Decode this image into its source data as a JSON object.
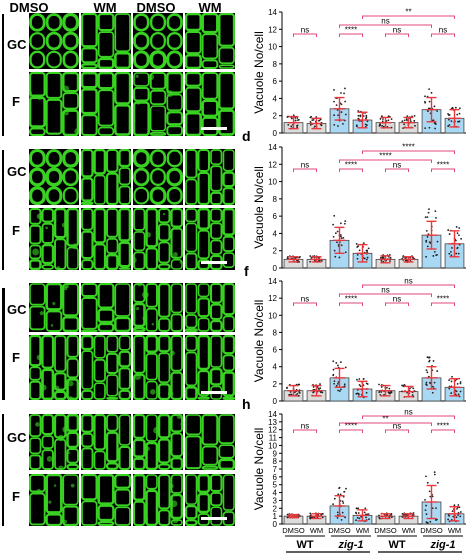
{
  "figure": {
    "column_headers": [
      "DMSO",
      "WM",
      "DMSO",
      "WM"
    ],
    "row_labels": [
      "GC",
      "F"
    ],
    "panel_letters": [
      "d",
      "f",
      "h"
    ],
    "xaxis_groups": [
      "WT",
      "zig-1",
      "WT",
      "zig-1"
    ],
    "colors": {
      "wt_bar": "#dcdcdc",
      "zig_bar": "#a9d8f3",
      "bar_edge": "#444444",
      "error": "#e8383d",
      "bracket": "#e04a7a",
      "micrograph_bg": "#000000",
      "micrograph_fg": "#39d122"
    }
  },
  "chart_data": [
    {
      "type": "bar",
      "ylabel": "Vacuole No/cell",
      "ylim": [
        0,
        14
      ],
      "yticks": [
        0,
        2,
        4,
        6,
        8,
        10,
        12,
        14
      ],
      "categories": [
        "DMSO",
        "WM",
        "DMSO",
        "WM",
        "DMSO",
        "WM",
        "DMSO",
        "WM"
      ],
      "groups": [
        "WT",
        "zig-1",
        "WT",
        "zig-1"
      ],
      "values": [
        1.2,
        1.1,
        2.8,
        1.5,
        1.2,
        1.2,
        2.7,
        1.7
      ],
      "errors": [
        0.7,
        0.6,
        1.3,
        0.9,
        0.6,
        0.6,
        1.4,
        1.0
      ],
      "significance": [
        {
          "from": 0,
          "to": 1,
          "label": "ns",
          "level": 1
        },
        {
          "from": 2,
          "to": 3,
          "label": "****",
          "level": 1
        },
        {
          "from": 4,
          "to": 5,
          "label": "ns",
          "level": 1
        },
        {
          "from": 6,
          "to": 7,
          "label": "ns",
          "level": 1
        },
        {
          "from": 2,
          "to": 6,
          "label": "ns",
          "level": 2
        },
        {
          "from": 3,
          "to": 7,
          "label": "**",
          "level": 3
        }
      ]
    },
    {
      "type": "bar",
      "panel": "d",
      "ylabel": "Vacuole No/cell",
      "ylim": [
        0,
        14
      ],
      "yticks": [
        0,
        2,
        4,
        6,
        8,
        10,
        12,
        14
      ],
      "categories": [
        "DMSO",
        "WM",
        "DMSO",
        "WM",
        "DMSO",
        "WM",
        "DMSO",
        "WM"
      ],
      "groups": [
        "WT",
        "zig-1",
        "WT",
        "zig-1"
      ],
      "values": [
        1.0,
        1.0,
        3.2,
        1.7,
        1.0,
        1.0,
        3.8,
        2.8
      ],
      "errors": [
        0.3,
        0.3,
        1.5,
        1.0,
        0.4,
        0.3,
        1.6,
        1.5
      ],
      "significance": [
        {
          "from": 0,
          "to": 1,
          "label": "ns",
          "level": 1
        },
        {
          "from": 2,
          "to": 3,
          "label": "****",
          "level": 1
        },
        {
          "from": 4,
          "to": 5,
          "label": "ns",
          "level": 1
        },
        {
          "from": 6,
          "to": 7,
          "label": "****",
          "level": 1
        },
        {
          "from": 2,
          "to": 6,
          "label": "****",
          "level": 2
        },
        {
          "from": 3,
          "to": 7,
          "label": "****",
          "level": 3
        }
      ]
    },
    {
      "type": "bar",
      "panel": "f",
      "ylabel": "Vacuole No/cell",
      "ylim": [
        0,
        14
      ],
      "yticks": [
        0,
        2,
        4,
        6,
        8,
        10,
        12,
        14
      ],
      "categories": [
        "DMSO",
        "WM",
        "DMSO",
        "WM",
        "DMSO",
        "WM",
        "DMSO",
        "WM"
      ],
      "groups": [
        "WT",
        "zig-1",
        "WT",
        "zig-1"
      ],
      "values": [
        1.2,
        1.2,
        2.7,
        1.4,
        1.2,
        1.1,
        2.7,
        1.6
      ],
      "errors": [
        0.6,
        0.6,
        1.1,
        0.9,
        0.6,
        0.6,
        1.3,
        1.0
      ],
      "significance": [
        {
          "from": 0,
          "to": 1,
          "label": "ns",
          "level": 1
        },
        {
          "from": 2,
          "to": 3,
          "label": "****",
          "level": 1
        },
        {
          "from": 4,
          "to": 5,
          "label": "ns",
          "level": 1
        },
        {
          "from": 6,
          "to": 7,
          "label": "****",
          "level": 1
        },
        {
          "from": 2,
          "to": 6,
          "label": "ns",
          "level": 2
        },
        {
          "from": 3,
          "to": 7,
          "label": "ns",
          "level": 3
        }
      ]
    },
    {
      "type": "bar",
      "panel": "h",
      "ylabel": "Vacuole No/cell",
      "ylim": [
        0,
        14
      ],
      "yticks": [
        0,
        1,
        2,
        3,
        4,
        5,
        6,
        7,
        8,
        9,
        10,
        11,
        12,
        13,
        14
      ],
      "categories": [
        "DMSO",
        "WM",
        "DMSO",
        "WM",
        "DMSO",
        "WM",
        "DMSO",
        "WM"
      ],
      "groups": [
        "WT",
        "zig-1",
        "WT",
        "zig-1"
      ],
      "values": [
        1.0,
        1.0,
        2.3,
        1.1,
        1.0,
        1.0,
        2.8,
        1.3
      ],
      "errors": [
        0.2,
        0.3,
        1.3,
        0.7,
        0.3,
        0.3,
        2.1,
        0.9
      ],
      "significance": [
        {
          "from": 0,
          "to": 1,
          "label": "ns",
          "level": 1
        },
        {
          "from": 2,
          "to": 3,
          "label": "****",
          "level": 1
        },
        {
          "from": 4,
          "to": 5,
          "label": "ns",
          "level": 1
        },
        {
          "from": 6,
          "to": 7,
          "label": "****",
          "level": 1
        },
        {
          "from": 2,
          "to": 6,
          "label": "**",
          "level": 2
        },
        {
          "from": 3,
          "to": 7,
          "label": "ns",
          "level": 3
        }
      ]
    }
  ]
}
